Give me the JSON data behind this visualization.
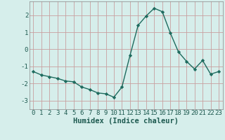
{
  "title": "",
  "xlabel": "Humidex (Indice chaleur)",
  "ylabel": "",
  "x": [
    0,
    1,
    2,
    3,
    4,
    5,
    6,
    7,
    8,
    9,
    10,
    11,
    12,
    13,
    14,
    15,
    16,
    17,
    18,
    19,
    20,
    21,
    22,
    23
  ],
  "y": [
    -1.3,
    -1.5,
    -1.6,
    -1.7,
    -1.85,
    -1.9,
    -2.2,
    -2.35,
    -2.55,
    -2.6,
    -2.8,
    -2.2,
    -0.35,
    1.4,
    1.95,
    2.4,
    2.2,
    0.95,
    -0.15,
    -0.7,
    -1.15,
    -0.65,
    -1.45,
    -1.3
  ],
  "line_color": "#1e6b5e",
  "marker": "D",
  "marker_size": 2.2,
  "background_color": "#d6eeeb",
  "grid_color": "#c8a0a0",
  "ylim": [
    -3.5,
    2.8
  ],
  "xlim": [
    -0.5,
    23.5
  ],
  "yticks": [
    -3,
    -2,
    -1,
    0,
    1,
    2
  ],
  "xticks": [
    0,
    1,
    2,
    3,
    4,
    5,
    6,
    7,
    8,
    9,
    10,
    11,
    12,
    13,
    14,
    15,
    16,
    17,
    18,
    19,
    20,
    21,
    22,
    23
  ],
  "tick_fontsize": 6.5,
  "xlabel_fontsize": 7.5,
  "xlabel_color": "#1e5a50",
  "tick_color": "#1e5a50",
  "spine_color": "#888888",
  "linewidth": 1.0
}
